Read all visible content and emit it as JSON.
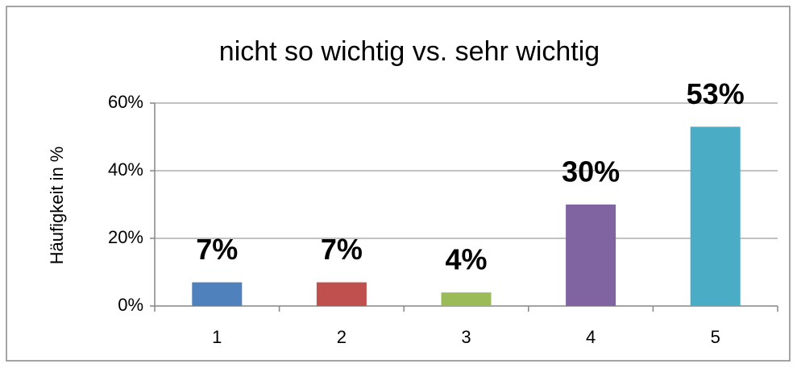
{
  "chart_data": {
    "type": "bar",
    "title": "nicht so wichtig vs. sehr wichtig",
    "y_label": "Häufigkeit in %",
    "categories": [
      "1",
      "2",
      "3",
      "4",
      "5"
    ],
    "values": [
      7,
      7,
      4,
      30,
      53
    ],
    "value_labels": [
      "7%",
      "7%",
      "4%",
      "30%",
      "53%"
    ],
    "colors": [
      "#4f81bd",
      "#c0504d",
      "#9bbb59",
      "#8064a2",
      "#4bacc6"
    ],
    "ylim": [
      0,
      60
    ],
    "yticks": [
      {
        "value": 0,
        "label": "0%"
      },
      {
        "value": 20,
        "label": "20%"
      },
      {
        "value": 40,
        "label": "40%"
      },
      {
        "value": 60,
        "label": "60%"
      }
    ],
    "grid": true
  }
}
